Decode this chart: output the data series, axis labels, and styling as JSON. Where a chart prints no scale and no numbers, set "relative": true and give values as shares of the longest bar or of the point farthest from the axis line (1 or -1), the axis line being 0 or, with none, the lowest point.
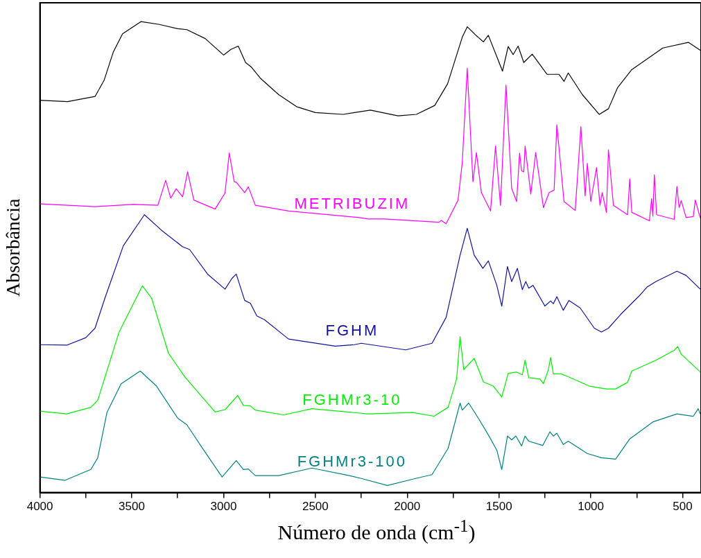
{
  "chart_data": {
    "type": "line",
    "relative": true,
    "xlabel": "Número de onda (cm$^{-1}$)",
    "ylabel": "Absorbância",
    "xlim": [
      4000,
      400
    ],
    "xticks": [
      4000,
      {
        "value": 3750,
        "label": null
      },
      3500,
      {
        "value": 3250,
        "label": null
      },
      3000,
      {
        "value": 2750,
        "label": null
      },
      2500,
      {
        "value": 2250,
        "label": null
      },
      2000,
      {
        "value": 1750,
        "label": null
      },
      1500,
      {
        "value": 1250,
        "label": null
      },
      1000,
      {
        "value": 750,
        "label": null
      },
      500
    ],
    "tick_labels": "x",
    "marker": "none",
    "line_style": "solid",
    "series": [
      {
        "color": "#000000",
        "x": [
          4000,
          3850,
          3700,
          3650,
          3600,
          3550,
          3450,
          3350,
          3250,
          3200,
          3100,
          3000,
          2960,
          2920,
          2880,
          2850,
          2800,
          2700,
          2600,
          2500,
          2350,
          2200,
          2050,
          1950,
          1850,
          1780,
          1700,
          1673,
          1623,
          1585,
          1558,
          1481,
          1450,
          1423,
          1396,
          1365,
          1319,
          1238,
          1173,
          1146,
          1123,
          1046,
          954,
          904,
          854,
          777,
          608,
          469,
          404
        ],
        "values": [
          0.833,
          0.83,
          0.841,
          0.876,
          0.936,
          0.974,
          1.0,
          0.994,
          0.985,
          0.983,
          0.964,
          0.929,
          0.941,
          0.948,
          0.913,
          0.904,
          0.88,
          0.845,
          0.819,
          0.807,
          0.803,
          0.812,
          0.8,
          0.803,
          0.822,
          0.868,
          0.967,
          0.989,
          0.97,
          0.957,
          0.971,
          0.895,
          0.947,
          0.93,
          0.948,
          0.913,
          0.931,
          0.888,
          0.888,
          0.873,
          0.891,
          0.845,
          0.803,
          0.815,
          0.86,
          0.898,
          0.944,
          0.956,
          0.939
        ]
      },
      {
        "name": "METRIBUZIM",
        "color": "#ff00ff",
        "x": [
          4000,
          3700,
          3492,
          3358,
          3315,
          3288,
          3258,
          3223,
          3196,
          3162,
          3046,
          2992,
          2969,
          2942,
          2931,
          2885,
          2865,
          2827,
          2646,
          2262,
          2212,
          2123,
          1827,
          1815,
          1788,
          1723,
          1700,
          1673,
          1642,
          1623,
          1596,
          1546,
          1519,
          1492,
          1462,
          1431,
          1404,
          1388,
          1377,
          1365,
          1358,
          1327,
          1300,
          1258,
          1227,
          1200,
          1185,
          1146,
          1085,
          1054,
          1031,
          1019,
          1000,
          969,
          950,
          938,
          915,
          904,
          877,
          800,
          788,
          777,
          681,
          669,
          662,
          654,
          642,
          546,
          531,
          519,
          508,
          481,
          442,
          431,
          404
        ],
        "values": [
          0.613,
          0.607,
          0.612,
          0.61,
          0.663,
          0.625,
          0.645,
          0.628,
          0.681,
          0.621,
          0.602,
          0.636,
          0.721,
          0.66,
          0.659,
          0.637,
          0.649,
          0.61,
          0.598,
          0.584,
          0.581,
          0.581,
          0.574,
          0.578,
          0.571,
          0.621,
          0.701,
          0.901,
          0.66,
          0.722,
          0.637,
          0.598,
          0.736,
          0.61,
          0.865,
          0.646,
          0.618,
          0.721,
          0.683,
          0.681,
          0.736,
          0.634,
          0.722,
          0.605,
          0.637,
          0.642,
          0.781,
          0.618,
          0.599,
          0.777,
          0.63,
          0.699,
          0.618,
          0.69,
          0.61,
          0.637,
          0.595,
          0.728,
          0.61,
          0.59,
          0.666,
          0.595,
          0.577,
          0.624,
          0.587,
          0.675,
          0.59,
          0.58,
          0.65,
          0.605,
          0.62,
          0.584,
          0.586,
          0.621,
          0.583
        ]
      },
      {
        "name": "FGHM",
        "color": "#10109a",
        "x": [
          4000,
          3854,
          3750,
          3700,
          3646,
          3546,
          3431,
          3338,
          3223,
          3185,
          3085,
          2992,
          2954,
          2931,
          2885,
          2854,
          2819,
          2777,
          2646,
          2392,
          2288,
          2250,
          2008,
          1865,
          1788,
          1712,
          1673,
          1635,
          1588,
          1558,
          1512,
          1485,
          1454,
          1431,
          1400,
          1373,
          1354,
          1338,
          1315,
          1250,
          1219,
          1204,
          1185,
          1150,
          1119,
          1058,
          981,
          942,
          904,
          838,
          738,
          692,
          646,
          531,
          481,
          404
        ],
        "values": [
          0.314,
          0.313,
          0.329,
          0.349,
          0.413,
          0.524,
          0.59,
          0.557,
          0.522,
          0.516,
          0.463,
          0.432,
          0.455,
          0.464,
          0.408,
          0.402,
          0.375,
          0.367,
          0.326,
          0.311,
          0.314,
          0.317,
          0.303,
          0.317,
          0.372,
          0.504,
          0.561,
          0.504,
          0.476,
          0.492,
          0.44,
          0.396,
          0.48,
          0.448,
          0.476,
          0.431,
          0.448,
          0.434,
          0.44,
          0.396,
          0.407,
          0.401,
          0.416,
          0.387,
          0.408,
          0.392,
          0.349,
          0.341,
          0.349,
          0.378,
          0.417,
          0.437,
          0.448,
          0.47,
          0.461,
          0.432
        ]
      },
      {
        "name": "FGHMr3-10",
        "color": "#00ee00",
        "x": [
          4000,
          3854,
          3723,
          3685,
          3569,
          3442,
          3392,
          3300,
          3212,
          3046,
          2992,
          2923,
          2892,
          2854,
          2827,
          2673,
          2519,
          2212,
          1969,
          1854,
          1777,
          1731,
          1712,
          1692,
          1635,
          1585,
          1531,
          1485,
          1450,
          1404,
          1373,
          1358,
          1338,
          1277,
          1258,
          1231,
          1219,
          1204,
          1162,
          1123,
          1008,
          915,
          865,
          800,
          777,
          646,
          546,
          527,
          508,
          404
        ],
        "values": [
          0.173,
          0.167,
          0.181,
          0.196,
          0.341,
          0.439,
          0.413,
          0.296,
          0.246,
          0.171,
          0.176,
          0.206,
          0.185,
          0.184,
          0.175,
          0.165,
          0.178,
          0.167,
          0.17,
          0.162,
          0.181,
          0.241,
          0.331,
          0.261,
          0.285,
          0.235,
          0.226,
          0.203,
          0.253,
          0.256,
          0.25,
          0.281,
          0.244,
          0.241,
          0.231,
          0.261,
          0.287,
          0.252,
          0.252,
          0.246,
          0.226,
          0.22,
          0.22,
          0.234,
          0.258,
          0.281,
          0.302,
          0.31,
          0.294,
          0.256
        ]
      },
      {
        "name": "FGHMr3-100",
        "color": "#008080",
        "x": [
          4000,
          3865,
          3723,
          3685,
          3635,
          3558,
          3454,
          3365,
          3250,
          3200,
          3108,
          3008,
          2931,
          2892,
          2865,
          2827,
          2700,
          2519,
          2315,
          2250,
          2108,
          1954,
          1865,
          1777,
          1712,
          1700,
          1665,
          1608,
          1550,
          1512,
          1485,
          1454,
          1431,
          1408,
          1377,
          1358,
          1338,
          1262,
          1223,
          1204,
          1185,
          1150,
          1123,
          1019,
          942,
          865,
          788,
          662,
          531,
          442,
          415,
          404
        ],
        "values": [
          0.033,
          0.026,
          0.049,
          0.074,
          0.17,
          0.231,
          0.258,
          0.226,
          0.158,
          0.144,
          0.09,
          0.033,
          0.068,
          0.049,
          0.05,
          0.036,
          0.036,
          0.052,
          0.036,
          0.03,
          0.015,
          0.03,
          0.038,
          0.094,
          0.19,
          0.175,
          0.19,
          0.155,
          0.117,
          0.09,
          0.049,
          0.12,
          0.112,
          0.12,
          0.099,
          0.12,
          0.109,
          0.1,
          0.129,
          0.12,
          0.126,
          0.102,
          0.109,
          0.083,
          0.074,
          0.071,
          0.114,
          0.15,
          0.167,
          0.162,
          0.178,
          0.167
        ]
      }
    ]
  }
}
